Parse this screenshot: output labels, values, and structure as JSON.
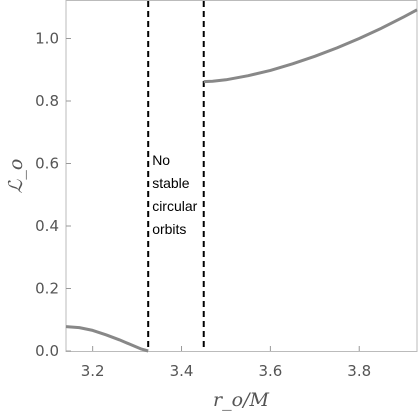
{
  "chart_data": {
    "type": "line",
    "title": "",
    "xlabel": "r_o/M",
    "ylabel": "ℒ_o",
    "xlim": [
      3.14,
      3.93
    ],
    "ylim": [
      0.0,
      1.12
    ],
    "x_ticks": [
      3.2,
      3.4,
      3.6,
      3.8
    ],
    "x_tick_labels": [
      "3.2",
      "3.4",
      "3.6",
      "3.8"
    ],
    "y_ticks": [
      0.0,
      0.2,
      0.4,
      0.6,
      0.8,
      1.0
    ],
    "y_tick_labels": [
      "0.0",
      "0.2",
      "0.4",
      "0.6",
      "0.8",
      "1.0"
    ],
    "grid": false,
    "series": [
      {
        "x": [
          3.14,
          3.17,
          3.2,
          3.23,
          3.26,
          3.29,
          3.31,
          3.325
        ],
        "y": [
          0.078,
          0.075,
          0.066,
          0.052,
          0.036,
          0.018,
          0.006,
          0.0
        ]
      },
      {
        "x": [
          3.45,
          3.47,
          3.5,
          3.55,
          3.6,
          3.65,
          3.7,
          3.75,
          3.8,
          3.85,
          3.9,
          3.93
        ],
        "y": [
          0.862,
          0.863,
          0.868,
          0.881,
          0.898,
          0.919,
          0.943,
          0.97,
          1.0,
          1.033,
          1.069,
          1.092
        ]
      }
    ],
    "vlines": [
      3.325,
      3.45
    ],
    "annotation": {
      "lines": [
        "No",
        "stable",
        "circular",
        "orbits"
      ]
    },
    "colors": {
      "curve": "#888888",
      "vline": "#000000",
      "frame": "#bbbbbb",
      "text": "#555555"
    }
  }
}
